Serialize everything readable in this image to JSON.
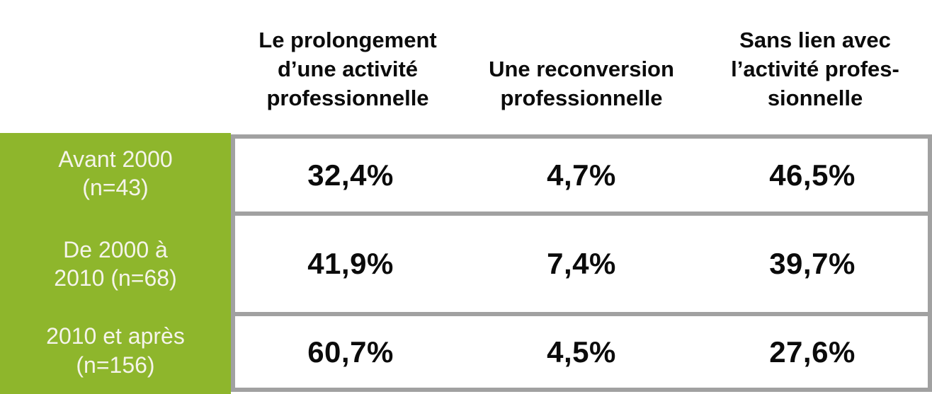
{
  "colors": {
    "green": "#8EB62C",
    "border_gray": "#A1A1A1",
    "text_black": "#0B0B0B",
    "row_label_text": "#F5F4EA"
  },
  "table": {
    "column_headers": [
      {
        "label": "Le prolongement\nd’une activité\nprofessionnelle"
      },
      {
        "label": "Une reconversion\nprofessionnelle"
      },
      {
        "label": "Sans lien avec\nl’activité profes-\nsionnelle"
      }
    ],
    "rows": [
      {
        "label": "Avant 2000\n(n=43)",
        "values": [
          "32,4%",
          "4,7%",
          "46,5%"
        ]
      },
      {
        "label": "De 2000 à\n2010 (n=68)",
        "values": [
          "41,9%",
          "7,4%",
          "39,7%"
        ]
      },
      {
        "label": "2010 et après\n(n=156)",
        "values": [
          "60,7%",
          "4,5%",
          "27,6%"
        ]
      }
    ]
  },
  "chart_data": {
    "type": "table",
    "columns": [
      "Le prolongement d’une activité professionnelle",
      "Une reconversion professionnelle",
      "Sans lien avec l’activité professionnelle"
    ],
    "rows": [
      "Avant 2000 (n=43)",
      "De 2000 à 2010 (n=68)",
      "2010 et après (n=156)"
    ],
    "sample_sizes": [
      43,
      68,
      156
    ],
    "values_percent": [
      [
        32.4,
        4.7,
        46.5
      ],
      [
        41.9,
        7.4,
        39.7
      ],
      [
        60.7,
        4.5,
        27.6
      ]
    ],
    "unit": "%"
  }
}
